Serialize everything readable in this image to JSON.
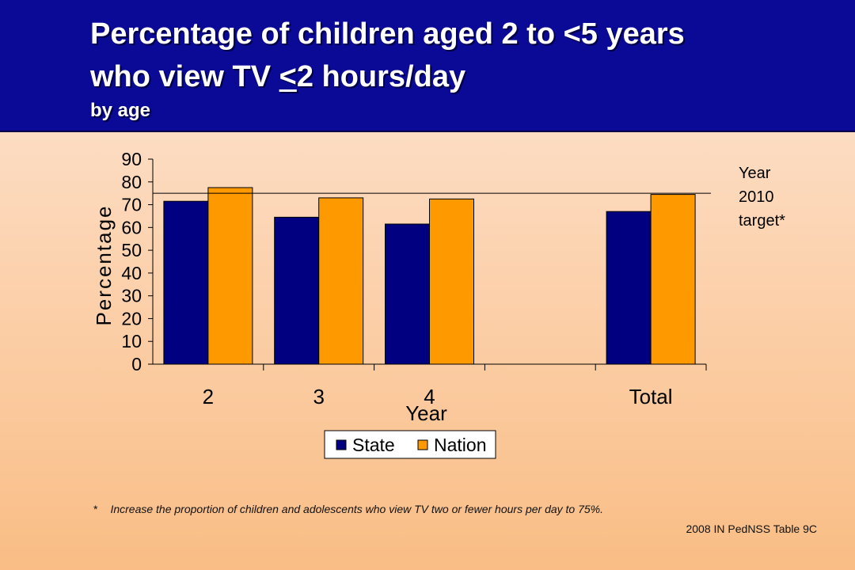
{
  "header": {
    "title_line1": "Percentage of children aged 2 to <5 years",
    "title_line2_prefix": "who view TV ",
    "title_line2_lt": "<",
    "title_line2_suffix": "2 hours/day",
    "subtitle": "by age"
  },
  "target_label": [
    "Year",
    "2010",
    "target*"
  ],
  "footnote": {
    "marker": "*",
    "text": "Increase the proportion of children and adolescents who view TV two or fewer hours per day to 75%."
  },
  "source": "2008 IN PedNSS Table 9C",
  "colors": {
    "state": "#000080",
    "nation": "#ff9900",
    "banner": "#0a0a96"
  },
  "chart_data": {
    "type": "bar",
    "categories": [
      "2",
      "3",
      "4",
      "",
      "Total"
    ],
    "series": [
      {
        "name": "State",
        "values": [
          71.5,
          64.5,
          61.5,
          null,
          67
        ]
      },
      {
        "name": "Nation",
        "values": [
          77.5,
          73,
          72.5,
          null,
          74.5
        ]
      }
    ],
    "xlabel": "Year",
    "ylabel": "Percentage",
    "ylim": [
      0,
      90
    ],
    "yticks": [
      0,
      10,
      20,
      30,
      40,
      50,
      60,
      70,
      80,
      90
    ],
    "target_value": 75,
    "legend_position": "bottom-center",
    "grid": false
  }
}
